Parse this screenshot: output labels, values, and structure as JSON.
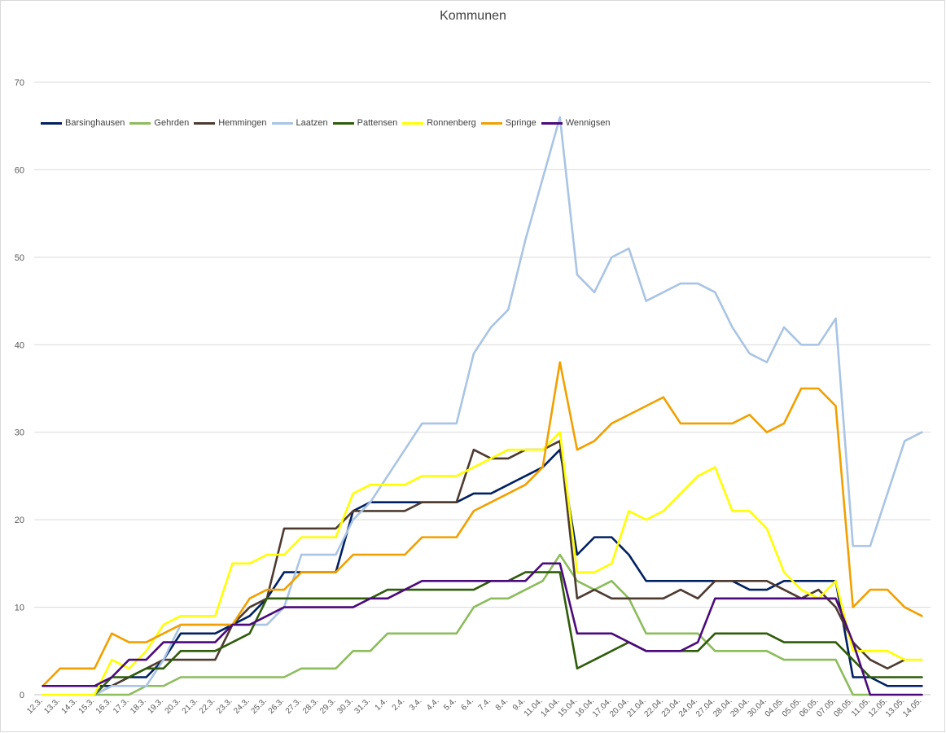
{
  "chart_data": {
    "type": "line",
    "title": "Kommunen",
    "xlabel": "",
    "ylabel": "",
    "ylim": [
      0,
      70
    ],
    "yticks": [
      0,
      10,
      20,
      30,
      40,
      50,
      60,
      70
    ],
    "grid": true,
    "legend_position": "top-left",
    "x": [
      "12.3.",
      "13.3.",
      "14.3.",
      "15.3.",
      "16.3.",
      "17.3.",
      "18.3.",
      "19.3.",
      "20.3.",
      "21.3.",
      "22.3.",
      "23.3.",
      "24.3.",
      "25.3.",
      "26.3.",
      "27.3.",
      "28.3.",
      "29.3.",
      "30.3.",
      "31.3.",
      "1.4.",
      "2.4.",
      "3.4.",
      "4.4.",
      "5.4.",
      "6.4.",
      "7.4.",
      "8.4.",
      "9.4.",
      "11.04.",
      "14.04.",
      "15.04.",
      "16.04.",
      "17.04.",
      "20.04.",
      "21.04.",
      "22.04.",
      "23.04.",
      "24.04.",
      "27.04.",
      "28.04.",
      "29.04.",
      "30.04.",
      "04.05.",
      "05.05.",
      "06.05.",
      "07.05.",
      "08.05.",
      "11.05.",
      "12.05.",
      "13.05.",
      "14.05."
    ],
    "series": [
      {
        "name": "Barsinghausen",
        "color": "#002060",
        "values": [
          1,
          1,
          1,
          1,
          1,
          2,
          2,
          4,
          7,
          7,
          7,
          8,
          9,
          11,
          14,
          14,
          14,
          14,
          21,
          22,
          22,
          22,
          22,
          22,
          22,
          23,
          23,
          24,
          25,
          26,
          28,
          16,
          18,
          18,
          16,
          13,
          13,
          13,
          13,
          13,
          13,
          12,
          12,
          13,
          13,
          13,
          13,
          2,
          2,
          1,
          1,
          1
        ]
      },
      {
        "name": "Gehrden",
        "color": "#8cbc5c",
        "values": [
          null,
          null,
          null,
          0,
          0,
          0,
          1,
          1,
          2,
          2,
          2,
          2,
          2,
          2,
          2,
          3,
          3,
          3,
          5,
          5,
          7,
          7,
          7,
          7,
          7,
          10,
          11,
          11,
          12,
          13,
          16,
          13,
          12,
          13,
          11,
          7,
          7,
          7,
          7,
          5,
          5,
          5,
          5,
          4,
          4,
          4,
          4,
          0,
          0,
          null,
          null,
          null
        ]
      },
      {
        "name": "Hemmingen",
        "color": "#4d3b30",
        "values": [
          null,
          null,
          null,
          0,
          1,
          2,
          3,
          4,
          4,
          4,
          4,
          8,
          10,
          11,
          19,
          19,
          19,
          19,
          21,
          21,
          21,
          21,
          22,
          22,
          22,
          28,
          27,
          27,
          28,
          28,
          29,
          11,
          12,
          11,
          11,
          11,
          11,
          12,
          11,
          13,
          13,
          13,
          13,
          12,
          11,
          12,
          10,
          6,
          4,
          3,
          4,
          null
        ]
      },
      {
        "name": "Laatzen",
        "color": "#a9c4e4",
        "values": [
          null,
          null,
          null,
          0,
          1,
          1,
          1,
          4,
          8,
          8,
          8,
          8,
          8,
          8,
          10,
          16,
          16,
          16,
          20,
          22,
          25,
          28,
          31,
          31,
          31,
          39,
          42,
          44,
          52,
          59,
          66,
          48,
          46,
          50,
          51,
          45,
          46,
          47,
          47,
          46,
          42,
          39,
          38,
          42,
          40,
          40,
          43,
          17,
          17,
          23,
          29,
          30
        ]
      },
      {
        "name": "Pattensen",
        "color": "#2e5c0a",
        "values": [
          null,
          null,
          null,
          0,
          2,
          2,
          3,
          3,
          5,
          5,
          5,
          6,
          7,
          11,
          11,
          11,
          11,
          11,
          11,
          11,
          12,
          12,
          12,
          12,
          12,
          12,
          13,
          13,
          14,
          14,
          14,
          3,
          4,
          5,
          6,
          5,
          5,
          5,
          5,
          7,
          7,
          7,
          7,
          6,
          6,
          6,
          6,
          4,
          2,
          2,
          2,
          2
        ]
      },
      {
        "name": "Ronnenberg",
        "color": "#ffff00",
        "values": [
          0,
          0,
          0,
          0,
          4,
          3,
          5,
          8,
          9,
          9,
          9,
          15,
          15,
          16,
          16,
          18,
          18,
          18,
          23,
          24,
          24,
          24,
          25,
          25,
          25,
          26,
          27,
          28,
          28,
          28,
          30,
          14,
          14,
          15,
          21,
          20,
          21,
          23,
          25,
          26,
          21,
          21,
          19,
          14,
          12,
          11,
          13,
          5,
          5,
          5,
          4,
          4
        ]
      },
      {
        "name": "Springe",
        "color": "#f0a000",
        "values": [
          1,
          3,
          3,
          3,
          7,
          6,
          6,
          7,
          8,
          8,
          8,
          8,
          11,
          12,
          12,
          14,
          14,
          14,
          16,
          16,
          16,
          16,
          18,
          18,
          18,
          21,
          22,
          23,
          24,
          26,
          38,
          28,
          29,
          31,
          32,
          33,
          34,
          31,
          31,
          31,
          31,
          32,
          30,
          31,
          35,
          35,
          33,
          10,
          12,
          12,
          10,
          9
        ]
      },
      {
        "name": "Wennigsen",
        "color": "#4b0a7a",
        "values": [
          1,
          1,
          1,
          1,
          2,
          4,
          4,
          6,
          6,
          6,
          6,
          8,
          8,
          9,
          10,
          10,
          10,
          10,
          10,
          11,
          11,
          12,
          13,
          13,
          13,
          13,
          13,
          13,
          13,
          15,
          15,
          7,
          7,
          7,
          6,
          5,
          5,
          5,
          6,
          11,
          11,
          11,
          11,
          11,
          11,
          11,
          11,
          6,
          0,
          0,
          0,
          0
        ]
      }
    ]
  }
}
